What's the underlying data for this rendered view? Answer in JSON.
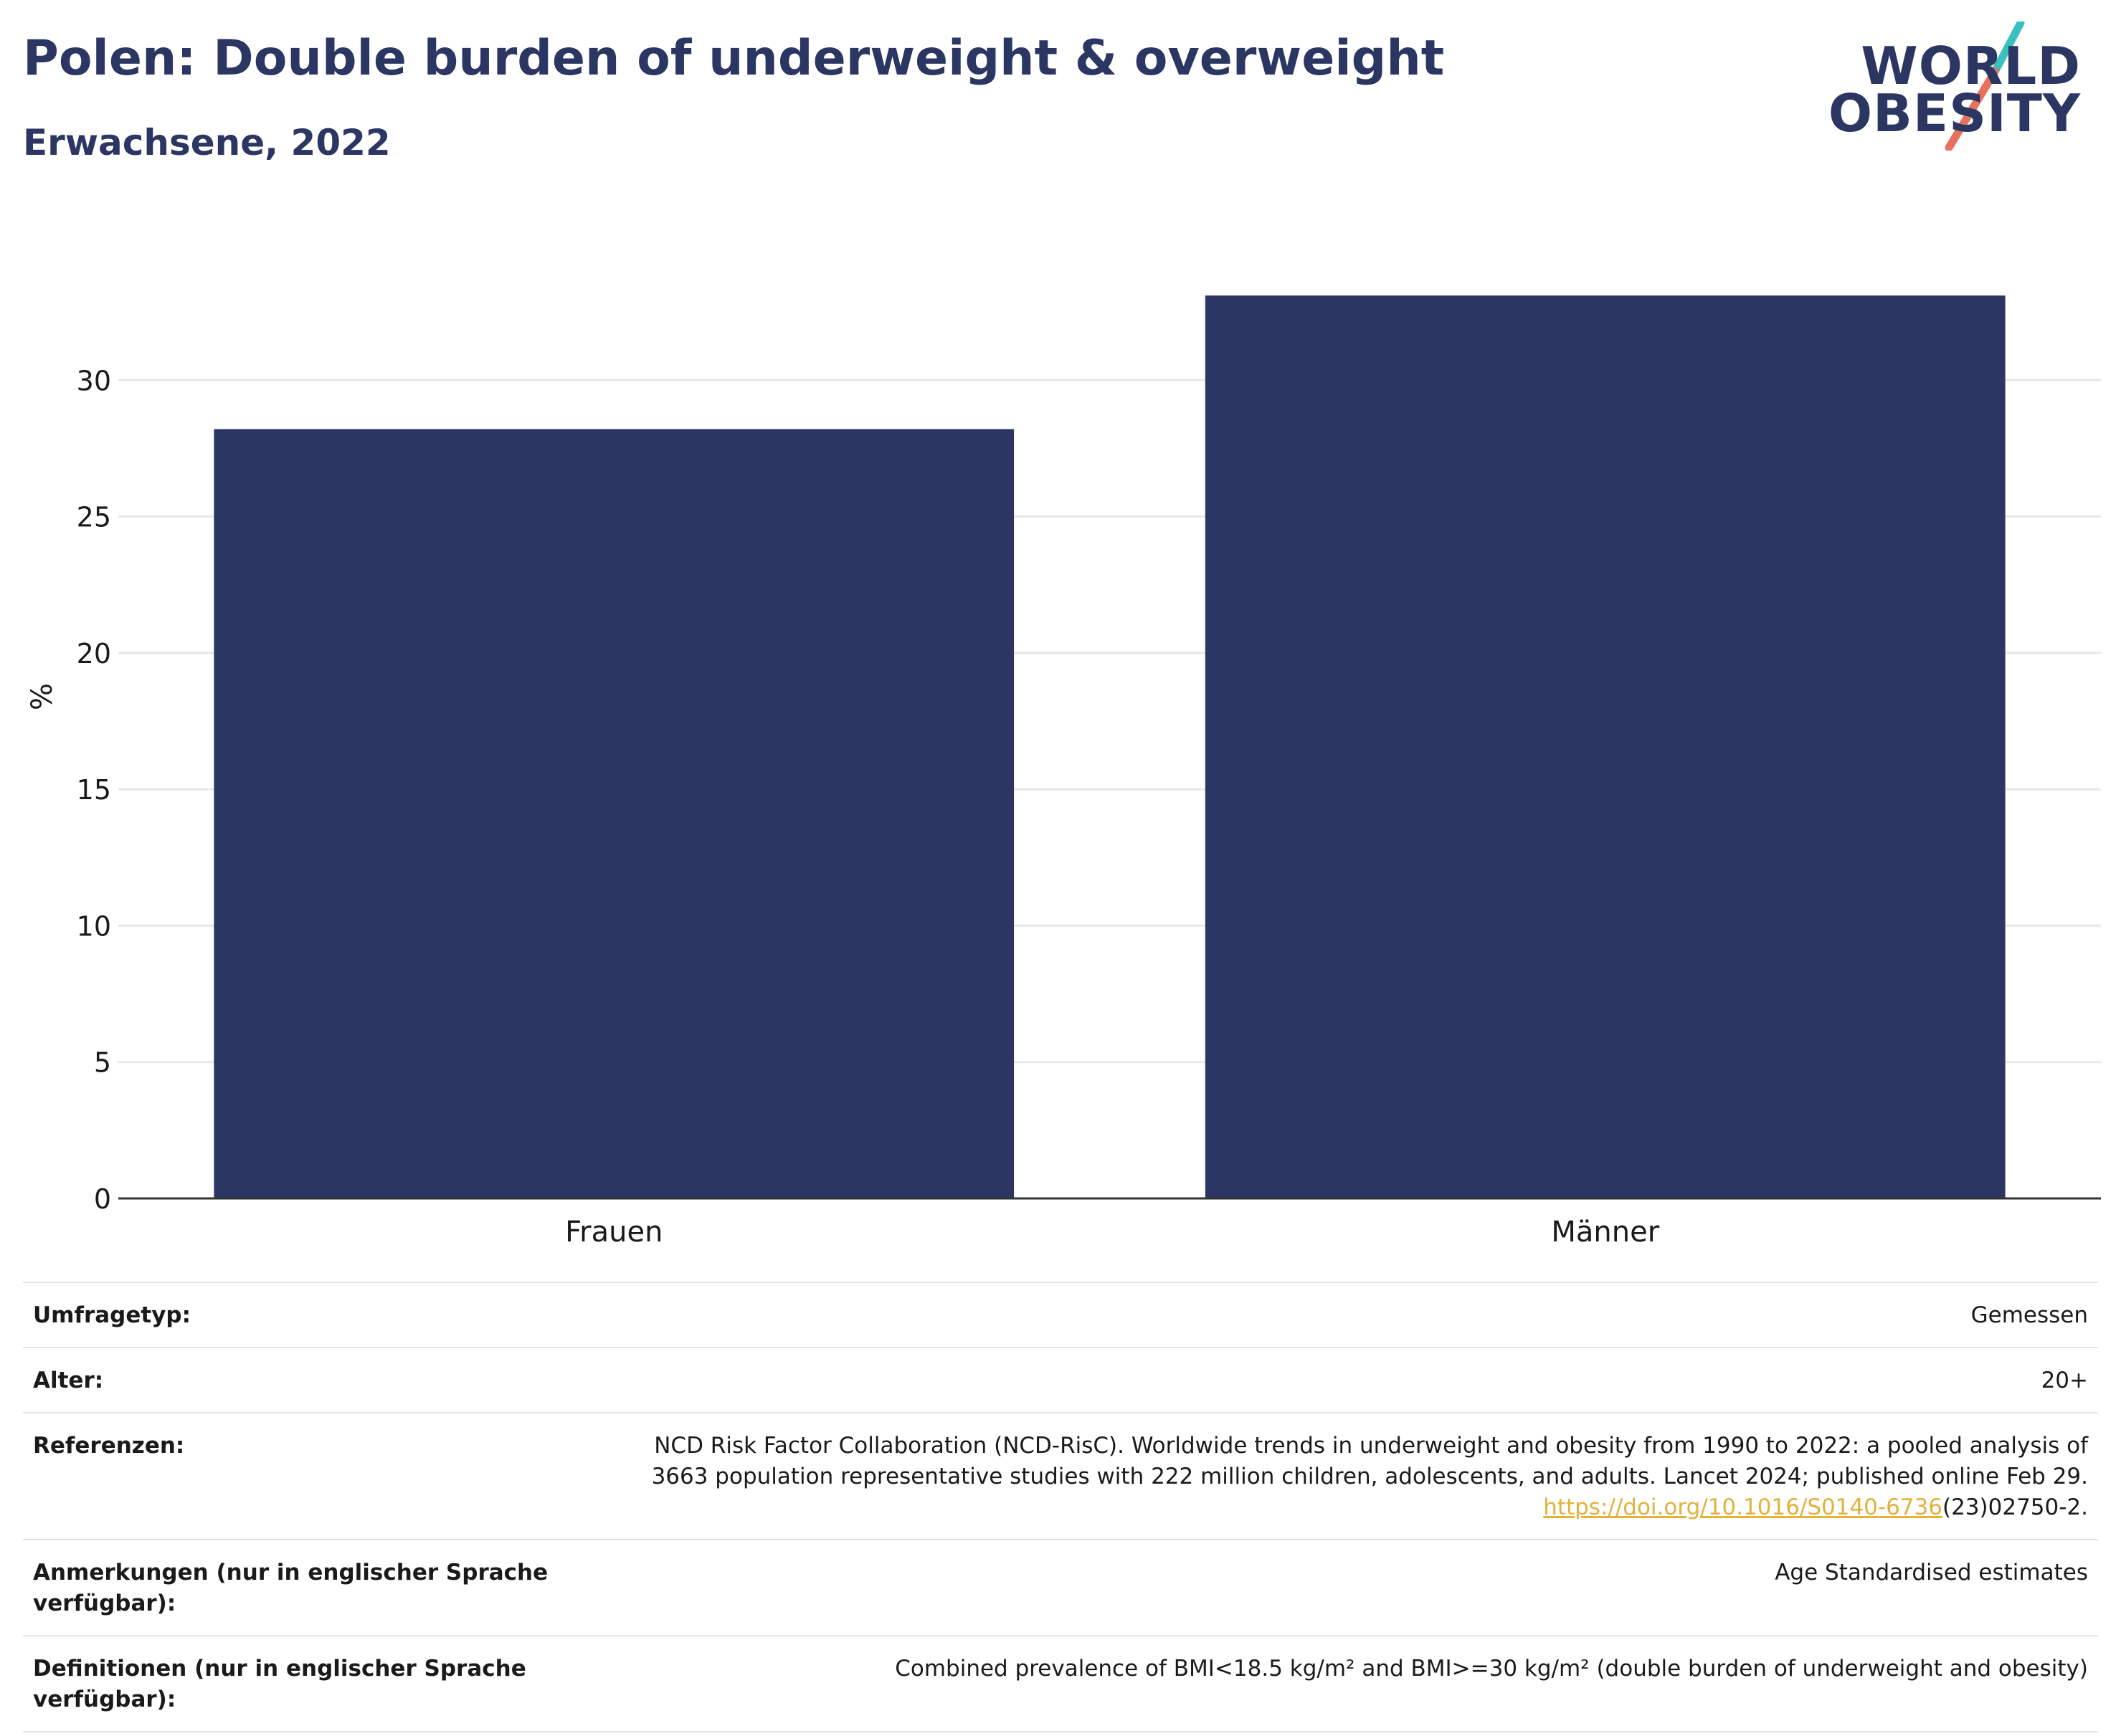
{
  "header": {
    "title": "Polen: Double burden of underweight & overweight",
    "subtitle": "Erwachsene, 2022"
  },
  "logo": {
    "line1": "WORLD",
    "line2": "OBESITY",
    "colors": {
      "text": "#2b3663",
      "slash_top": "#3cbfbf",
      "slash_bottom": "#e8705f"
    }
  },
  "chart_data": {
    "type": "bar",
    "categories": [
      "Frauen",
      "Männer"
    ],
    "values": [
      28.2,
      33.1
    ],
    "title": "",
    "xlabel": "",
    "ylabel": "%",
    "ylim": [
      0,
      35
    ],
    "yticks": [
      0,
      5,
      10,
      15,
      20,
      25,
      30
    ],
    "grid": true,
    "bar_color": "#2b3663",
    "grid_color": "#e8e8e8"
  },
  "meta": {
    "rows": [
      {
        "label": "Umfragetyp:",
        "value": "Gemessen"
      },
      {
        "label": "Alter:",
        "value": "20+"
      },
      {
        "label": "Referenzen:",
        "value_line1": "NCD Risk Factor Collaboration (NCD-RisC). Worldwide trends in underweight and obesity from 1990 to 2022: a pooled analysis of",
        "value_line2": "3663 population representative studies with 222 million children, adolescents, and adults. Lancet 2024; published online Feb 29.",
        "link": "https://doi.org/10.1016/S0140-6736",
        "link_suffix": "(23)02750-2."
      },
      {
        "label": "Anmerkungen (nur in englischer Sprache verfügbar):",
        "value": "Age Standardised estimates"
      },
      {
        "label": "Definitionen (nur in englischer Sprache verfügbar):",
        "value": "Combined prevalence of BMI<18.5 kg/m² and BMI>=30 kg/m² (double burden of underweight and obesity)"
      }
    ]
  }
}
